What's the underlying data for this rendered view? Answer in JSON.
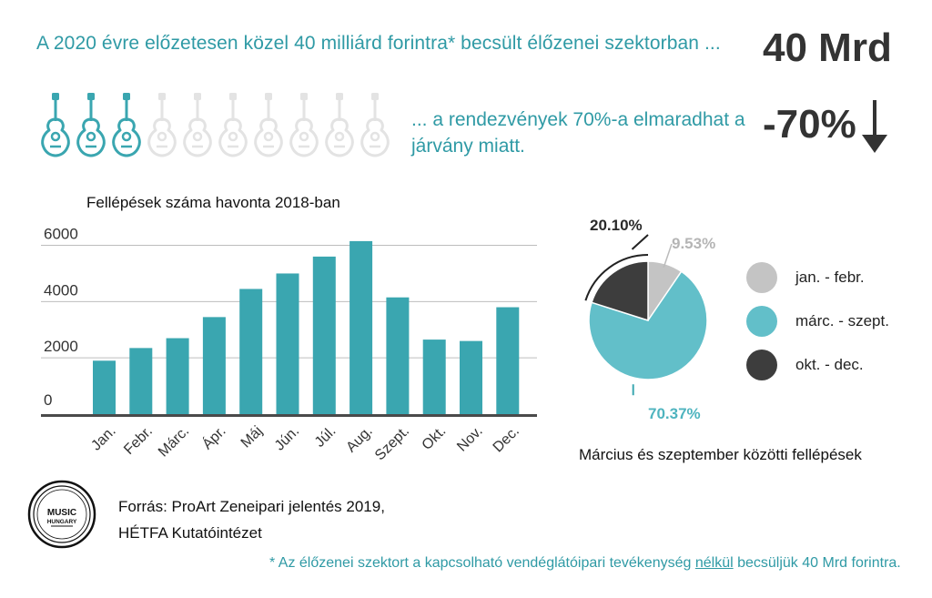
{
  "header": {
    "headline": "A 2020 évre előzetesen közel 40 milliárd forintra* becsült élőzenei szektorban ...",
    "kpi_value": "40 Mrd",
    "subline": "... a rendezvények 70%-a elmaradhat a járvány miatt.",
    "kpi_change": "-70%",
    "guitars_total": 10,
    "guitars_highlighted": 3
  },
  "colors": {
    "teal": "#3aa6b0",
    "teal_light": "#62bfc9",
    "teal_text": "#2f9aa5",
    "grey_light": "#c4c4c4",
    "grey_dark": "#3d3d3d",
    "guitar_inactive": "#e3e3e3"
  },
  "chart_data": [
    {
      "type": "bar",
      "title": "Fellépések száma havonta 2018-ban",
      "categories": [
        "Jan.",
        "Febr.",
        "Márc.",
        "Ápr.",
        "Máj",
        "Jún.",
        "Júl.",
        "Aug.",
        "Szept.",
        "Okt.",
        "Nov.",
        "Dec."
      ],
      "values": [
        1900,
        2350,
        2700,
        3450,
        4450,
        5000,
        5600,
        6150,
        4150,
        2650,
        2600,
        3800
      ],
      "yticks": [
        "0",
        "2000",
        "4000",
        "6000"
      ],
      "ylim": [
        0,
        6600
      ],
      "grid": true
    },
    {
      "type": "pie",
      "title": "Március és szeptember közötti fellépések",
      "slices": [
        {
          "label": "jan. - febr.",
          "value": 9.53,
          "display": "9.53%",
          "color": "#c4c4c4"
        },
        {
          "label": "márc. - szept.",
          "value": 70.37,
          "display": "70.37%",
          "color": "#62bfc9"
        },
        {
          "label": "okt. - dec.",
          "value": 20.1,
          "display": "20.10%",
          "color": "#3d3d3d"
        }
      ]
    }
  ],
  "source": {
    "line1": "Forrás: ProArt Zeneipari jelentés 2019,",
    "line2": "HÉTFA Kutatóintézet"
  },
  "footnote": {
    "before": "* Az élőzenei szektort a kapcsolható vendéglátóipari tevékenység ",
    "underlined": "nélkül",
    "after": " becsüljük 40 Mrd forintra."
  },
  "logo": {
    "line1": "MUSIC",
    "line2": "HUNGARY"
  }
}
